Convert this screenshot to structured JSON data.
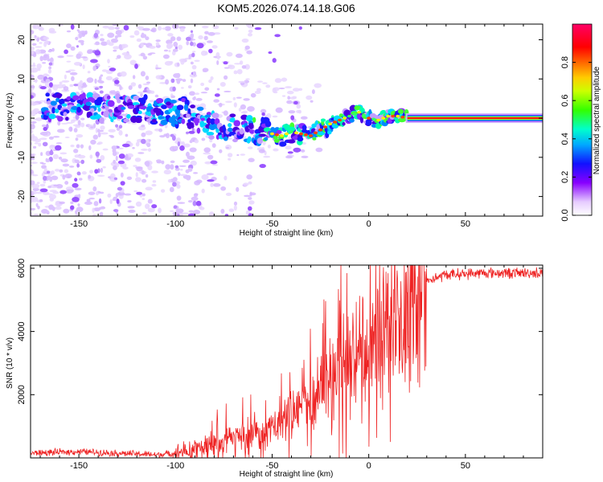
{
  "title": "KOM5.2026.074.14.18.G06",
  "chart_data": [
    {
      "type": "heatmap",
      "name": "spectrogram",
      "xlabel": "Height of straight line (km)",
      "ylabel": "Frequency (Hz)",
      "xlim": [
        -175,
        90
      ],
      "ylim": [
        -25,
        24
      ],
      "xticks": [
        -150,
        -100,
        -50,
        0,
        50
      ],
      "xtick_labels": [
        "-150",
        "-100",
        "-50",
        "0",
        "50"
      ],
      "yticks": [
        -20,
        -10,
        0,
        10,
        20
      ],
      "ytick_labels": [
        "-20",
        "-10",
        "0",
        "10",
        "20"
      ],
      "ridge": [
        {
          "x": -160,
          "y": 3
        },
        {
          "x": -150,
          "y": 3
        },
        {
          "x": -140,
          "y": 2.5
        },
        {
          "x": -130,
          "y": 2.5
        },
        {
          "x": -120,
          "y": 2.5
        },
        {
          "x": -110,
          "y": 2
        },
        {
          "x": -100,
          "y": 1
        },
        {
          "x": -95,
          "y": 2
        },
        {
          "x": -90,
          "y": 0
        },
        {
          "x": -80,
          "y": -2
        },
        {
          "x": -70,
          "y": -2.5
        },
        {
          "x": -60,
          "y": -3
        },
        {
          "x": -50,
          "y": -4
        },
        {
          "x": -45,
          "y": -4.5
        },
        {
          "x": -40,
          "y": -3.5
        },
        {
          "x": -35,
          "y": -4
        },
        {
          "x": -30,
          "y": -4.5
        },
        {
          "x": -25,
          "y": -3
        },
        {
          "x": -20,
          "y": -1.5
        },
        {
          "x": -15,
          "y": -0.5
        },
        {
          "x": -10,
          "y": 0.5
        },
        {
          "x": -5,
          "y": 1.5
        },
        {
          "x": 0,
          "y": 0
        },
        {
          "x": 5,
          "y": -0.5
        },
        {
          "x": 10,
          "y": 0.5
        },
        {
          "x": 15,
          "y": 0.5
        },
        {
          "x": 20,
          "y": 0
        },
        {
          "x": 90,
          "y": 0
        }
      ],
      "colorbar": {
        "label": "Normalized spectral amplitude",
        "range": [
          0,
          1
        ],
        "ticks": [
          0.0,
          0.2,
          0.4,
          0.6,
          0.8
        ],
        "tick_labels": [
          "0.0",
          "0.2",
          "0.4",
          "0.6",
          "0.8"
        ]
      }
    },
    {
      "type": "line",
      "name": "snr",
      "xlabel": "Height of straight line (km)",
      "ylabel": "SNR (10 * v/v)",
      "xlim": [
        -175,
        90
      ],
      "ylim": [
        0,
        6100
      ],
      "xticks": [
        -150,
        -100,
        -50,
        0,
        50
      ],
      "xtick_labels": [
        "-150",
        "-100",
        "-50",
        "0",
        "50"
      ],
      "yticks": [
        2000,
        4000,
        6000
      ],
      "ytick_labels": [
        "2000",
        "4000",
        "6000"
      ],
      "color": "#ee2222",
      "envelope": [
        {
          "x": -175,
          "y": 150
        },
        {
          "x": -150,
          "y": 200
        },
        {
          "x": -130,
          "y": 150
        },
        {
          "x": -110,
          "y": 100
        },
        {
          "x": -100,
          "y": 150
        },
        {
          "x": -90,
          "y": 300
        },
        {
          "x": -80,
          "y": 500
        },
        {
          "x": -70,
          "y": 600
        },
        {
          "x": -60,
          "y": 700
        },
        {
          "x": -50,
          "y": 900
        },
        {
          "x": -40,
          "y": 1400
        },
        {
          "x": -30,
          "y": 1900
        },
        {
          "x": -20,
          "y": 2600
        },
        {
          "x": -10,
          "y": 3000
        },
        {
          "x": 0,
          "y": 3500
        },
        {
          "x": 10,
          "y": 4100
        },
        {
          "x": 20,
          "y": 4900
        },
        {
          "x": 30,
          "y": 5600
        },
        {
          "x": 40,
          "y": 5800
        },
        {
          "x": 60,
          "y": 5850
        },
        {
          "x": 90,
          "y": 5850
        }
      ]
    }
  ]
}
